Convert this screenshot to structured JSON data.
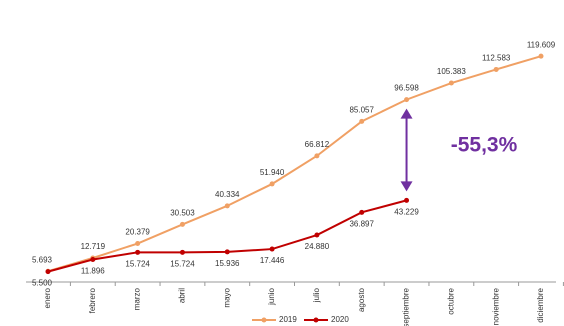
{
  "chart_data": {
    "type": "line",
    "categories": [
      "enero",
      "febrero",
      "marzo",
      "abril",
      "mayo",
      "junio",
      "julio",
      "agosto",
      "septiembre",
      "octubre",
      "noviembre",
      "diciembre"
    ],
    "series": [
      {
        "name": "2019",
        "color": "#f0a064",
        "values": [
          5693,
          12719,
          20379,
          30503,
          40334,
          51940,
          66812,
          85057,
          96598,
          105383,
          112583,
          119609
        ],
        "value_labels": [
          "5.693",
          "12.719",
          "20.379",
          "30.503",
          "40.334",
          "51.940",
          "66.812",
          "85.057",
          "96.598",
          "105.383",
          "112.583",
          "119.609"
        ]
      },
      {
        "name": "2020",
        "color": "#c00000",
        "values": [
          5500,
          11896,
          15724,
          15724,
          15936,
          17446,
          24880,
          36897,
          43229,
          null,
          null,
          null
        ],
        "value_labels": [
          "5.500",
          "11.896",
          "15.724",
          "15.724",
          "15.936",
          "17.446",
          "24.880",
          "36.897",
          "43.229",
          null,
          null,
          null
        ]
      }
    ],
    "ylim": [
      0,
      125000
    ],
    "annotation": "-55,3%"
  }
}
